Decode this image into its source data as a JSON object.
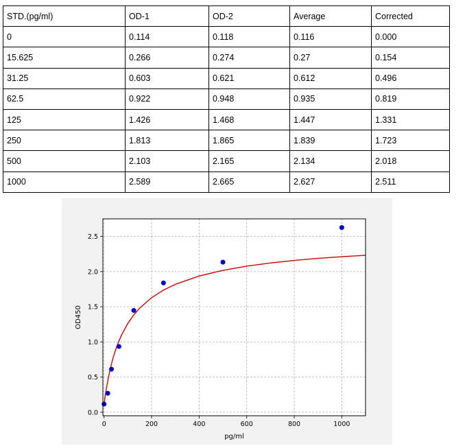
{
  "table": {
    "headers": [
      "STD.(pg/ml)",
      "OD-1",
      "OD-2",
      "Average",
      "Corrected"
    ],
    "rows": [
      [
        "0",
        "0.114",
        "0.118",
        "0.116",
        "0.000"
      ],
      [
        "15.625",
        "0.266",
        "0.274",
        "0.27",
        "0.154"
      ],
      [
        "31.25",
        "0.603",
        "0.621",
        "0.612",
        "0.496"
      ],
      [
        "62.5",
        "0.922",
        "0.948",
        "0.935",
        "0.819"
      ],
      [
        "125",
        "1.426",
        "1.468",
        "1.447",
        "1.331"
      ],
      [
        "250",
        "1.813",
        "1.865",
        "1.839",
        "1.723"
      ],
      [
        "500",
        "2.103",
        "2.165",
        "2.134",
        "2.018"
      ],
      [
        "1000",
        "2.589",
        "2.665",
        "2.627",
        "2.511"
      ]
    ]
  },
  "chart_data": {
    "type": "scatter",
    "title": "",
    "xlabel": "pg/ml",
    "ylabel": "OD450",
    "xlim": [
      -5,
      1100
    ],
    "ylim": [
      -0.05,
      2.75
    ],
    "xticks": [
      0,
      200,
      400,
      600,
      800,
      1000
    ],
    "yticks": [
      0.0,
      0.5,
      1.0,
      1.5,
      2.0,
      2.5
    ],
    "xtick_labels": [
      "0",
      "200",
      "400",
      "600",
      "800",
      "1000"
    ],
    "ytick_labels": [
      "0.0",
      "0.5",
      "1.0",
      "1.5",
      "2.0",
      "2.5"
    ],
    "grid": true,
    "points": {
      "x": [
        0,
        15.625,
        31.25,
        62.5,
        125,
        250,
        500,
        1000
      ],
      "y": [
        0.116,
        0.27,
        0.612,
        0.935,
        1.447,
        1.839,
        2.134,
        2.627
      ],
      "color": "#0000cc"
    },
    "fit_curve": {
      "color": "#cc0000",
      "x": [
        0,
        5,
        10,
        20,
        30,
        40,
        50,
        62.5,
        75,
        100,
        125,
        150,
        200,
        250,
        300,
        400,
        500,
        600,
        700,
        800,
        900,
        1000,
        1100
      ],
      "y": [
        0.116,
        0.236,
        0.343,
        0.524,
        0.672,
        0.796,
        0.901,
        1.013,
        1.108,
        1.263,
        1.384,
        1.481,
        1.629,
        1.737,
        1.819,
        1.937,
        2.018,
        2.078,
        2.123,
        2.159,
        2.188,
        2.212,
        2.232
      ]
    }
  }
}
